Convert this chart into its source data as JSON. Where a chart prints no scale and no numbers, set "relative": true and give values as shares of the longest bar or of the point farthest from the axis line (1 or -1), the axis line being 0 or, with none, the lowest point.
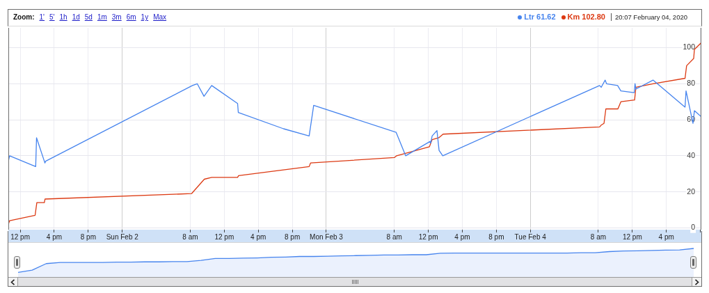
{
  "chart_data": [
    {
      "type": "line",
      "series": [
        {
          "name": "Ltr",
          "color": "#4684ee",
          "x": [
            "2020-02-01T10:36",
            "2020-02-01T10:45",
            "2020-02-01T13:49",
            "2020-02-01T13:55",
            "2020-02-01T14:50",
            "2020-02-01T14:54",
            "2020-02-01T14:59",
            "2020-02-02T08:15",
            "2020-02-02T08:49",
            "2020-02-02T09:37",
            "2020-02-02T10:31",
            "2020-02-02T13:34",
            "2020-02-02T13:39",
            "2020-02-02T18:58",
            "2020-02-02T21:59",
            "2020-02-02T22:31",
            "2020-02-03T08:13",
            "2020-02-03T09:20",
            "2020-02-03T12:13",
            "2020-02-03T12:17",
            "2020-02-03T12:27",
            "2020-02-03T13:01",
            "2020-02-03T13:16",
            "2020-02-03T13:42",
            "2020-02-04T08:09",
            "2020-02-04T08:20",
            "2020-02-04T08:48",
            "2020-02-04T08:58",
            "2020-02-04T10:16",
            "2020-02-04T10:39",
            "2020-02-04T12:13",
            "2020-02-04T12:19",
            "2020-02-04T12:25",
            "2020-02-04T14:26",
            "2020-02-04T18:12",
            "2020-02-04T18:19",
            "2020-02-04T19:08",
            "2020-02-04T19:18",
            "2020-02-04T20:07"
          ],
          "values": [
            37,
            40,
            34,
            50,
            37,
            36,
            37,
            79,
            80,
            73,
            79,
            69,
            64,
            55,
            51,
            68,
            53,
            40,
            48,
            47,
            51,
            54,
            43,
            40,
            79,
            78,
            82,
            80,
            79,
            76,
            75,
            80,
            77,
            82,
            67,
            76,
            58,
            65,
            61.62
          ]
        },
        {
          "name": "Km",
          "color": "#dc3912",
          "x": [
            "2020-02-01T10:36",
            "2020-02-01T10:45",
            "2020-02-01T13:45",
            "2020-02-01T13:57",
            "2020-02-01T14:50",
            "2020-02-01T14:55",
            "2020-02-02T08:09",
            "2020-02-02T09:39",
            "2020-02-02T10:31",
            "2020-02-02T13:34",
            "2020-02-02T13:41",
            "2020-02-02T21:59",
            "2020-02-02T22:09",
            "2020-02-03T08:00",
            "2020-02-03T08:16",
            "2020-02-03T12:08",
            "2020-02-03T12:17",
            "2020-02-03T12:27",
            "2020-02-03T13:14",
            "2020-02-03T13:44",
            "2020-02-04T08:09",
            "2020-02-04T08:20",
            "2020-02-04T08:40",
            "2020-02-04T08:53",
            "2020-02-04T10:18",
            "2020-02-04T10:39",
            "2020-02-04T12:16",
            "2020-02-04T12:25",
            "2020-02-04T14:26",
            "2020-02-04T18:12",
            "2020-02-04T18:23",
            "2020-02-04T19:13",
            "2020-02-04T19:18",
            "2020-02-04T20:07"
          ],
          "values": [
            2,
            4,
            7,
            14,
            14,
            16,
            19,
            27,
            28,
            28,
            29,
            34,
            36,
            39,
            40,
            45,
            47,
            49,
            50,
            52,
            56,
            57,
            58,
            66,
            66,
            70,
            71,
            78,
            80,
            83,
            90,
            94,
            99,
            102.8
          ]
        }
      ],
      "xlim": [
        "2020-02-01T10:36",
        "2020-02-04T20:07"
      ],
      "xticks": [
        {
          "value": "2020-02-01T12:00",
          "label": "12 pm"
        },
        {
          "value": "2020-02-01T16:00",
          "label": "4 pm"
        },
        {
          "value": "2020-02-01T20:00",
          "label": "8 pm"
        },
        {
          "value": "2020-02-02T00:00",
          "label": "Sun Feb 2"
        },
        {
          "value": "2020-02-02T08:00",
          "label": "8 am"
        },
        {
          "value": "2020-02-02T12:00",
          "label": "12 pm"
        },
        {
          "value": "2020-02-02T16:00",
          "label": "4 pm"
        },
        {
          "value": "2020-02-02T20:00",
          "label": "8 pm"
        },
        {
          "value": "2020-02-03T00:00",
          "label": "Mon Feb 3"
        },
        {
          "value": "2020-02-03T08:00",
          "label": "8 am"
        },
        {
          "value": "2020-02-03T12:00",
          "label": "12 pm"
        },
        {
          "value": "2020-02-03T16:00",
          "label": "4 pm"
        },
        {
          "value": "2020-02-03T20:00",
          "label": "8 pm"
        },
        {
          "value": "2020-02-04T00:00",
          "label": "Tue Feb 4"
        },
        {
          "value": "2020-02-04T08:00",
          "label": "8 am"
        },
        {
          "value": "2020-02-04T12:00",
          "label": "12 pm"
        },
        {
          "value": "2020-02-04T16:00",
          "label": "4 pm"
        },
        {
          "value": "2020-02-04T20:00",
          "label": null
        }
      ],
      "ylim": [
        -1,
        111
      ],
      "yticks": [
        0,
        20,
        40,
        60,
        80,
        100
      ],
      "grid": true,
      "legend": "top right",
      "annotations": [
        "Zoom:",
        "1'",
        "5'",
        "1h",
        "1d",
        "5d",
        "1m",
        "3m",
        "6m",
        "1y",
        "Max",
        "61.62",
        "102.80",
        "20:07 February 04, 2020"
      ]
    },
    {
      "type": "area",
      "color": "#4684ee",
      "relative": true,
      "tick_labels": false,
      "categories": [
        null,
        null,
        null,
        null,
        null,
        null,
        null,
        null,
        null,
        null,
        null,
        null,
        null,
        null,
        null,
        null,
        null,
        null,
        null,
        null,
        null,
        null,
        null,
        null,
        null,
        null,
        null,
        null,
        null,
        null,
        null,
        null,
        null,
        null,
        null,
        null,
        null,
        null,
        null,
        null,
        null,
        null,
        null,
        null,
        null,
        null,
        null,
        null,
        null
      ],
      "values": [
        0.16,
        0.24,
        0.47,
        0.51,
        0.51,
        0.51,
        0.51,
        0.52,
        0.52,
        0.53,
        0.53,
        0.54,
        0.54,
        0.58,
        0.65,
        0.65,
        0.66,
        0.67,
        0.69,
        0.7,
        0.72,
        0.72,
        0.73,
        0.74,
        0.75,
        0.76,
        0.77,
        0.77,
        0.78,
        0.78,
        0.83,
        0.84,
        0.84,
        0.84,
        0.84,
        0.84,
        0.84,
        0.84,
        0.84,
        0.84,
        0.85,
        0.85,
        0.89,
        0.91,
        0.92,
        0.93,
        0.94,
        0.95,
        1
      ]
    }
  ]
}
